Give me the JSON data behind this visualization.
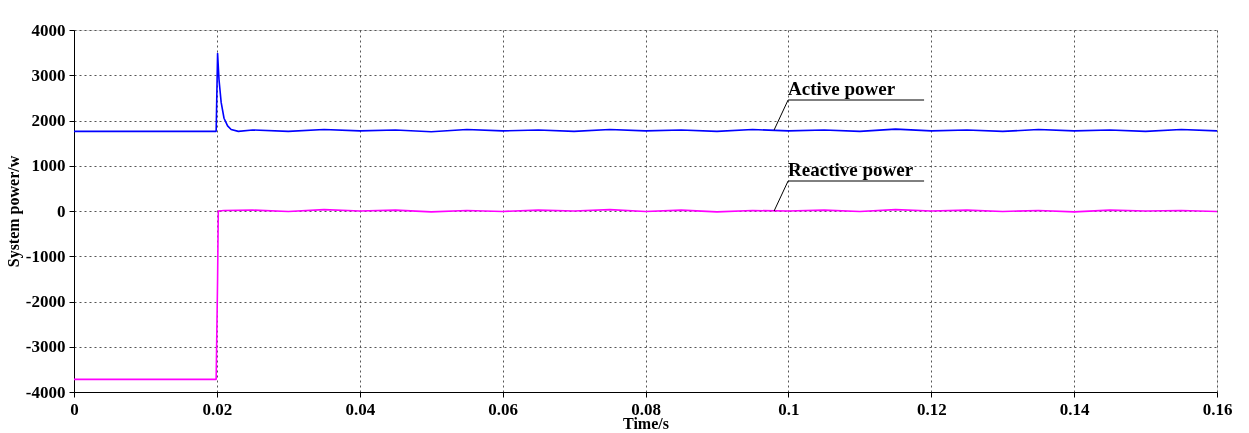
{
  "chart_data": {
    "type": "line",
    "xlabel": "Time/s",
    "ylabel": "System power/w",
    "xlim": [
      0,
      0.16
    ],
    "xticks": [
      0,
      0.02,
      0.04,
      0.06,
      0.08,
      0.1,
      0.12,
      0.14,
      0.16
    ],
    "ylim": [
      -4000,
      4000
    ],
    "yticks": [
      -4000,
      -3000,
      -2000,
      -1000,
      0,
      1000,
      2000,
      3000,
      4000
    ],
    "grid": true,
    "line_style": "solid",
    "marker": "none",
    "series": [
      {
        "color": "#0000ff",
        "x": [
          0,
          0.0199,
          0.0201,
          0.0203,
          0.0206,
          0.021,
          0.0215,
          0.022,
          0.023,
          0.025,
          0.03,
          0.035,
          0.04,
          0.045,
          0.05,
          0.055,
          0.06,
          0.065,
          0.07,
          0.075,
          0.08,
          0.085,
          0.09,
          0.095,
          0.1,
          0.105,
          0.11,
          0.115,
          0.12,
          0.125,
          0.13,
          0.135,
          0.14,
          0.145,
          0.15,
          0.155,
          0.16
        ],
        "values": [
          1760,
          1760,
          3480,
          2900,
          2400,
          2050,
          1880,
          1800,
          1760,
          1790,
          1760,
          1800,
          1770,
          1790,
          1750,
          1800,
          1770,
          1790,
          1760,
          1800,
          1770,
          1790,
          1760,
          1800,
          1770,
          1790,
          1760,
          1810,
          1770,
          1790,
          1760,
          1800,
          1770,
          1790,
          1760,
          1800,
          1770
        ]
      },
      {
        "color": "#ff00ff",
        "x": [
          0,
          0.0199,
          0.0201,
          0.0202,
          0.021,
          0.025,
          0.03,
          0.035,
          0.04,
          0.045,
          0.05,
          0.055,
          0.06,
          0.065,
          0.07,
          0.075,
          0.08,
          0.085,
          0.09,
          0.095,
          0.1,
          0.105,
          0.11,
          0.115,
          0.12,
          0.125,
          0.13,
          0.135,
          0.14,
          0.145,
          0.15,
          0.155,
          0.16
        ],
        "values": [
          -3720,
          -3720,
          -1500,
          0,
          10,
          20,
          -10,
          30,
          0,
          20,
          -20,
          10,
          -10,
          20,
          0,
          30,
          -10,
          20,
          -20,
          10,
          0,
          20,
          -10,
          30,
          0,
          20,
          -10,
          10,
          -20,
          20,
          0,
          10,
          -10
        ]
      }
    ],
    "annotations": [
      {
        "text": "Active power",
        "x": 0.098,
        "y": 1790
      },
      {
        "text": "Reactive power",
        "x": 0.098,
        "y": 0
      }
    ]
  }
}
